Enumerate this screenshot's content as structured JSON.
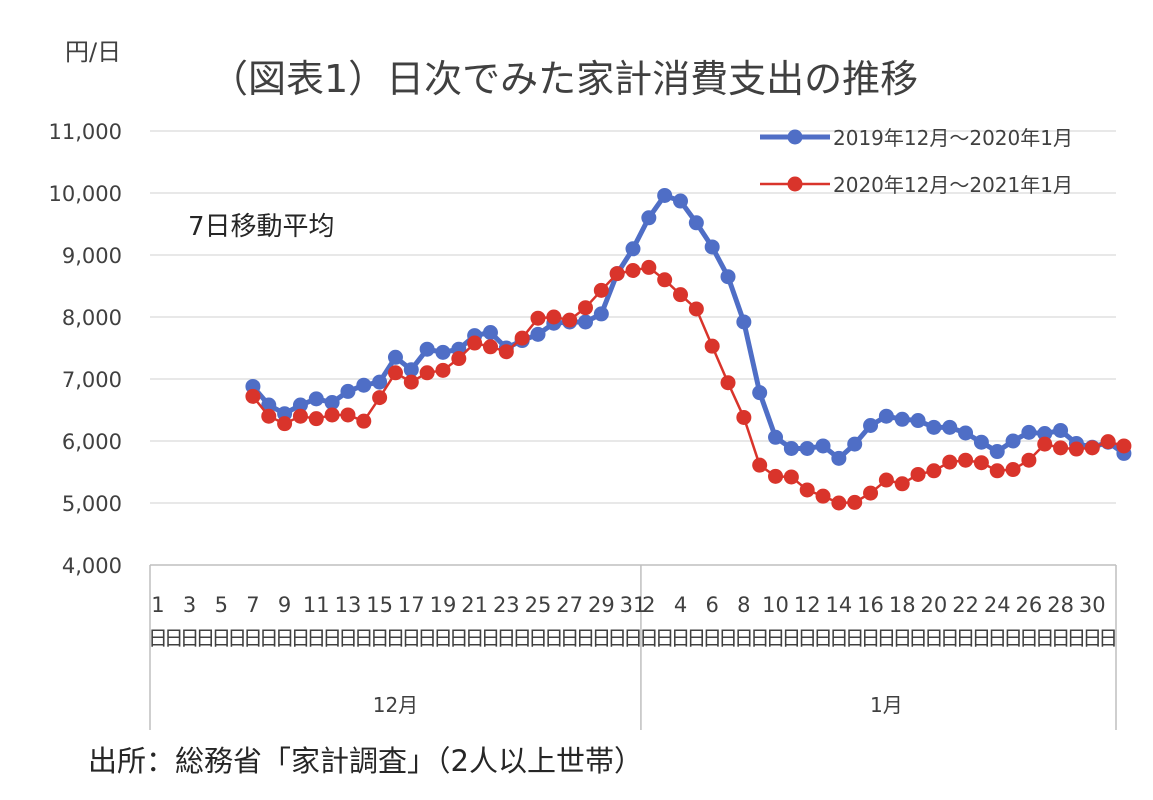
{
  "chart_data": {
    "type": "line",
    "title": "（図表1）日次でみた家計消費支出の推移",
    "ylabel": "円/日",
    "annotation": "7日移動平均",
    "source": "出所：総務省「家計調査」（2人以上世帯）",
    "ylim": [
      4000,
      11000
    ],
    "yticks": [
      4000,
      5000,
      6000,
      7000,
      8000,
      9000,
      10000,
      11000
    ],
    "ytick_labels": [
      "4,000",
      "5,000",
      "6,000",
      "7,000",
      "8,000",
      "9,000",
      "10,000",
      "11,000"
    ],
    "grid": true,
    "legend_position": "top-right",
    "x_tick_labels": [
      "1",
      "",
      "3",
      "",
      "5",
      "",
      "7",
      "",
      "9",
      "",
      "11",
      "",
      "13",
      "",
      "15",
      "",
      "17",
      "",
      "19",
      "",
      "21",
      "",
      "23",
      "",
      "25",
      "",
      "27",
      "",
      "29",
      "",
      "31",
      "2",
      "",
      "4",
      "",
      "6",
      "",
      "8",
      "",
      "10",
      "",
      "12",
      "",
      "14",
      "",
      "16",
      "",
      "18",
      "",
      "20",
      "",
      "22",
      "",
      "24",
      "",
      "26",
      "",
      "28",
      "",
      "30",
      ""
    ],
    "day_suffix": "日",
    "month_groups": [
      {
        "label": "12月",
        "count": 31
      },
      {
        "label": "1月",
        "count": 31
      }
    ],
    "series": [
      {
        "name": "2019年12月～2020年1月",
        "color": "#4F6EC6",
        "values": [
          null,
          null,
          null,
          null,
          null,
          null,
          6880,
          6580,
          6440,
          6580,
          6680,
          6620,
          6800,
          6900,
          6950,
          7350,
          7150,
          7480,
          7430,
          7480,
          7700,
          7750,
          7500,
          7620,
          7720,
          7900,
          7920,
          7920,
          8050,
          8700,
          9100,
          9600,
          9960,
          9870,
          9520,
          9130,
          8650,
          7920,
          6780,
          6060,
          5880,
          5880,
          5920,
          5720,
          5950,
          6250,
          6400,
          6350,
          6330,
          6220,
          6220,
          6130,
          5980,
          5830,
          6000,
          6140,
          6120,
          6170,
          5960,
          5900,
          5980,
          5800
        ]
      },
      {
        "name": "2020年12月～2021年1月",
        "color": "#D9342B",
        "values": [
          null,
          null,
          null,
          null,
          null,
          null,
          6720,
          6400,
          6280,
          6400,
          6360,
          6420,
          6420,
          6320,
          6700,
          7100,
          6950,
          7100,
          7140,
          7330,
          7580,
          7520,
          7440,
          7660,
          7980,
          8000,
          7950,
          8150,
          8430,
          8700,
          8750,
          8800,
          8600,
          8360,
          8130,
          7530,
          6940,
          6380,
          5610,
          5430,
          5420,
          5210,
          5110,
          5000,
          5010,
          5160,
          5370,
          5310,
          5460,
          5520,
          5660,
          5690,
          5650,
          5520,
          5540,
          5690,
          5950,
          5890,
          5870,
          5890,
          5990,
          5920
        ]
      }
    ]
  },
  "styles": {
    "axis_color": "#BFBFBF",
    "grid_color": "#D9D9D9",
    "text_color": "#404040"
  }
}
